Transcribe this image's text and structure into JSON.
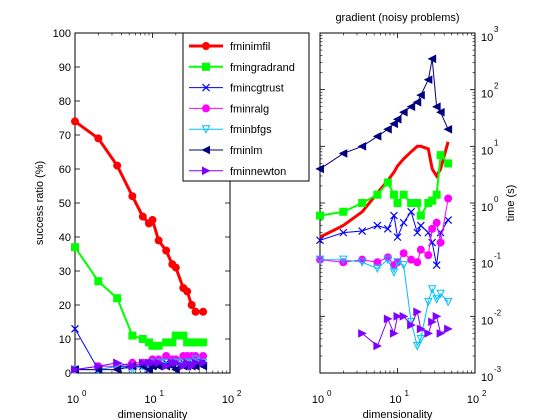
{
  "chart_data": [
    {
      "type": "line",
      "title": "",
      "xlabel": "dimensionality",
      "ylabel": "success ratio (%)",
      "xscale": "log",
      "xlim": [
        1,
        100
      ],
      "ylim": [
        0,
        100
      ],
      "x_tick_labels": [
        {
          "base": "10",
          "exp": "0",
          "value": 1
        },
        {
          "base": "10",
          "exp": "1",
          "value": 10
        },
        {
          "base": "10",
          "exp": "2",
          "value": 100
        }
      ],
      "y_tick_labels": [
        "0",
        "10",
        "20",
        "30",
        "40",
        "50",
        "60",
        "70",
        "80",
        "90",
        "100"
      ],
      "y_ticks": [
        0,
        10,
        20,
        30,
        40,
        50,
        60,
        70,
        80,
        90,
        100
      ],
      "legend_position": "top-right",
      "series": [
        {
          "name": "fminimfil",
          "color": "#ff0000",
          "marker": "circle",
          "lineWidth": 3,
          "x": [
            1,
            2,
            3.5,
            5.5,
            7.5,
            9,
            10,
            12,
            15,
            18,
            20,
            25,
            28,
            32,
            36,
            45
          ],
          "y": [
            74,
            69,
            61,
            52,
            46,
            44,
            45,
            39,
            36,
            32,
            31,
            25,
            24,
            20,
            18,
            18
          ]
        },
        {
          "name": "fmingradrand",
          "color": "#00ff00",
          "marker": "square",
          "lineWidth": 2,
          "x": [
            1,
            2,
            3.5,
            5.5,
            7.5,
            9,
            10,
            12,
            15,
            18,
            20,
            25,
            28,
            32,
            36,
            45
          ],
          "y": [
            37,
            27,
            22,
            11,
            10,
            9,
            8,
            8,
            9,
            9,
            11,
            11,
            9,
            9,
            9,
            9
          ]
        },
        {
          "name": "fmincgtrust",
          "color": "#0000ff",
          "marker": "x",
          "lineWidth": 1,
          "x": [
            1,
            2,
            3.5,
            5.5,
            7.5,
            9,
            10,
            12,
            15,
            18,
            20,
            25,
            28,
            32,
            36,
            45
          ],
          "y": [
            13,
            1,
            2,
            2,
            2,
            1,
            3,
            2,
            3,
            4,
            3,
            3,
            3,
            3,
            4,
            4
          ]
        },
        {
          "name": "fminralg",
          "color": "#ff00ff",
          "marker": "circle",
          "lineWidth": 1,
          "x": [
            1,
            2,
            3.5,
            5.5,
            7.5,
            9,
            10,
            12,
            15,
            18,
            20,
            25,
            28,
            32,
            36,
            45
          ],
          "y": [
            1,
            2,
            2,
            3,
            3,
            3,
            4,
            4,
            5,
            4,
            4,
            5,
            5,
            5,
            5,
            5
          ]
        },
        {
          "name": "fminbfgs",
          "color": "#00bfff",
          "marker": "triangle-down",
          "lineWidth": 1,
          "x": [
            1,
            2,
            3.5,
            5.5,
            7.5,
            9,
            10,
            12,
            15,
            18,
            20,
            25,
            28,
            32,
            36,
            45
          ],
          "y": [
            1,
            1,
            2,
            1,
            2,
            2,
            3,
            3,
            3,
            3,
            3,
            3,
            3,
            3,
            4,
            3
          ]
        },
        {
          "name": "fminlm",
          "color": "#000080",
          "marker": "triangle-left",
          "lineWidth": 1,
          "x": [
            1,
            2,
            3.5,
            5.5,
            7.5,
            9,
            10,
            12,
            15,
            18,
            20,
            25,
            28,
            32,
            36,
            45
          ],
          "y": [
            1,
            1,
            1,
            2,
            2,
            1,
            2,
            2,
            2,
            2,
            1,
            2,
            2,
            2,
            2,
            2
          ]
        },
        {
          "name": "fminnewton",
          "color": "#8000ff",
          "marker": "triangle-right",
          "lineWidth": 1,
          "x": [
            1,
            2,
            3.5,
            5.5,
            7.5,
            9,
            10,
            12,
            15,
            18,
            20,
            25,
            28,
            32,
            36,
            45
          ],
          "y": [
            1,
            2,
            3,
            2,
            3,
            3,
            3,
            3,
            2,
            3,
            3,
            2,
            3,
            2,
            3,
            3
          ]
        }
      ]
    },
    {
      "type": "line",
      "title": "gradient (noisy problems)",
      "xlabel": "dimensionality",
      "ylabel": "time (s)",
      "xscale": "log",
      "yscale": "log",
      "xlim": [
        1,
        100
      ],
      "ylim": [
        0.001,
        1000
      ],
      "x_tick_labels": [
        {
          "base": "10",
          "exp": "0",
          "value": 1
        },
        {
          "base": "10",
          "exp": "1",
          "value": 10
        },
        {
          "base": "10",
          "exp": "2",
          "value": 100
        }
      ],
      "y_tick_labels": [
        {
          "base": "10",
          "exp": "-3",
          "value": 0.001
        },
        {
          "base": "10",
          "exp": "-2",
          "value": 0.01
        },
        {
          "base": "10",
          "exp": "-1",
          "value": 0.1
        },
        {
          "base": "10",
          "exp": "0",
          "value": 1
        },
        {
          "base": "10",
          "exp": "1",
          "value": 10
        },
        {
          "base": "10",
          "exp": "2",
          "value": 100
        },
        {
          "base": "10",
          "exp": "3",
          "value": 1000
        }
      ],
      "series": [
        {
          "name": "fminimfil",
          "color": "#ff0000",
          "marker": "none",
          "lineWidth": 3,
          "x": [
            1,
            2,
            3.5,
            5.5,
            7.5,
            9,
            10,
            12,
            15,
            18,
            20,
            25,
            28,
            32,
            36,
            45
          ],
          "y": [
            0.25,
            0.4,
            0.7,
            1.5,
            2.5,
            3.5,
            4.5,
            6,
            8,
            10,
            10,
            9,
            4,
            3,
            4,
            12
          ]
        },
        {
          "name": "fmingradrand",
          "color": "#00ff00",
          "marker": "square",
          "lineWidth": 2,
          "x": [
            1,
            2,
            3.5,
            5.5,
            7.5,
            9,
            10,
            12,
            15,
            18,
            20,
            25,
            28,
            32,
            36,
            45
          ],
          "y": [
            0.6,
            0.7,
            1,
            1.4,
            2.3,
            1.4,
            1,
            1.4,
            1,
            1,
            0.6,
            1,
            1.1,
            1.4,
            7,
            5
          ]
        },
        {
          "name": "fmincgtrust",
          "color": "#0000ff",
          "marker": "x",
          "lineWidth": 1,
          "x": [
            1,
            2,
            3.5,
            5.5,
            7.5,
            9,
            10,
            12,
            15,
            18,
            20,
            25,
            28,
            32,
            36,
            45
          ],
          "y": [
            0.22,
            0.3,
            0.32,
            0.4,
            0.35,
            0.6,
            0.25,
            0.45,
            0.7,
            0.3,
            0.4,
            0.3,
            0.2,
            0.08,
            0.3,
            0.5
          ]
        },
        {
          "name": "fminralg",
          "color": "#ff00ff",
          "marker": "circle",
          "lineWidth": 1,
          "x": [
            1,
            2,
            3.5,
            5.5,
            7.5,
            9,
            10,
            12,
            15,
            18,
            20,
            25,
            28,
            32,
            36,
            45
          ],
          "y": [
            0.1,
            0.09,
            0.1,
            0.09,
            0.11,
            0.08,
            0.09,
            0.13,
            0.1,
            0.09,
            0.15,
            0.12,
            0.35,
            0.45,
            0.2,
            1.2
          ]
        },
        {
          "name": "fminbfgs",
          "color": "#00bfff",
          "marker": "triangle-down",
          "lineWidth": 1,
          "x": [
            1,
            2,
            3.5,
            5.5,
            7.5,
            9,
            10,
            12,
            15,
            18,
            20,
            25,
            28,
            32,
            36,
            45
          ],
          "y": [
            0.1,
            0.1,
            0.09,
            0.07,
            0.1,
            0.06,
            0.09,
            0.08,
            0.008,
            0.003,
            0.004,
            0.018,
            0.03,
            0.02,
            0.025,
            0.018
          ]
        },
        {
          "name": "fminlm",
          "color": "#000080",
          "marker": "triangle-left",
          "lineWidth": 1,
          "x": [
            1,
            2,
            3.5,
            5.5,
            7.5,
            9,
            10,
            12,
            15,
            18,
            20,
            25,
            28,
            32,
            36,
            45
          ],
          "y": [
            4,
            7.5,
            10,
            15,
            20,
            25,
            30,
            40,
            50,
            60,
            80,
            150,
            350,
            50,
            40,
            20
          ]
        },
        {
          "name": "fminnewton",
          "color": "#8000ff",
          "marker": "triangle-right",
          "lineWidth": 1,
          "x": [
            1,
            2,
            3.5,
            5.5,
            7.5,
            9,
            10,
            12,
            15,
            18,
            20,
            25,
            28,
            32,
            36,
            45
          ],
          "y": [
            null,
            null,
            0.005,
            0.003,
            0.009,
            0.005,
            0.01,
            0.01,
            0.007,
            0.012,
            0.006,
            0.005,
            0.008,
            0.01,
            0.005,
            0.006
          ]
        }
      ]
    }
  ]
}
